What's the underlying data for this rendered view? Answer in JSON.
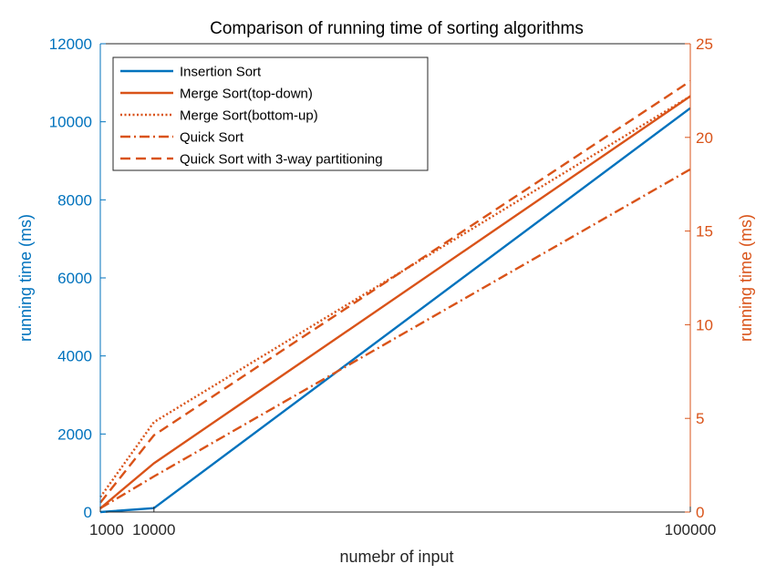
{
  "chart_data": {
    "type": "line",
    "title": "Comparison of running time of sorting algorithms",
    "xlabel": "numebr of input",
    "ylabel_left": "running time (ms)",
    "ylabel_right": "running time (ms)",
    "x": [
      1000,
      10000,
      100000
    ],
    "x_ticks": [
      "1000",
      "10000",
      "100000"
    ],
    "xlim": [
      1000,
      100000
    ],
    "ylim_left": [
      0,
      12000
    ],
    "ylim_right": [
      0,
      25
    ],
    "y_ticks_left": [
      "0",
      "2000",
      "4000",
      "6000",
      "8000",
      "10000",
      "12000"
    ],
    "y_ticks_right": [
      "0",
      "5",
      "10",
      "15",
      "20",
      "25"
    ],
    "grid": false,
    "legend_position": "top-left",
    "colors": {
      "left_axis": "#0072BD",
      "right_axis": "#D95319",
      "box": "#262626"
    },
    "series": [
      {
        "name": "Insertion Sort",
        "axis": "left",
        "style": "solid",
        "color": "#0072BD",
        "values": [
          1,
          100,
          10350
        ]
      },
      {
        "name": "Merge Sort(top-down)",
        "axis": "right",
        "style": "solid",
        "color": "#D95319",
        "values": [
          0.2,
          2.6,
          22.2
        ]
      },
      {
        "name": "Merge Sort(bottom-up)",
        "axis": "right",
        "style": "dotted",
        "color": "#D95319",
        "values": [
          0.8,
          4.8,
          22.2
        ]
      },
      {
        "name": "Quick Sort",
        "axis": "right",
        "style": "dashdot",
        "color": "#D95319",
        "values": [
          0.2,
          1.9,
          18.3
        ]
      },
      {
        "name": "Quick Sort with 3-way partitioning",
        "axis": "right",
        "style": "dashed",
        "color": "#D95319",
        "values": [
          0.5,
          4.1,
          23.0
        ]
      }
    ]
  }
}
